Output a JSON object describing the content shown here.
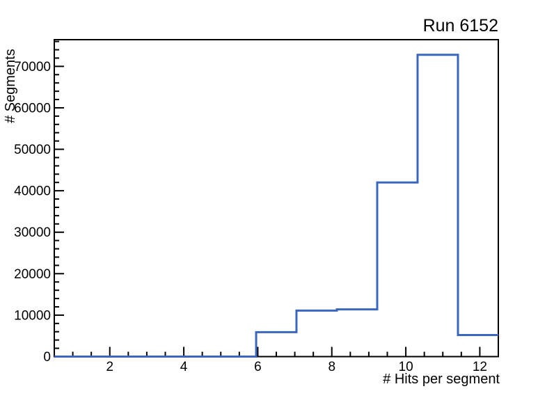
{
  "title": "Run 6152",
  "chart_data": {
    "type": "histogram-step",
    "title": "Run 6152",
    "xlabel": "# Hits per segment",
    "ylabel": "# Segments",
    "xlim": [
      0.5,
      12.5
    ],
    "ylim": [
      0,
      76440
    ],
    "bin_edges": [
      0.5,
      1.591,
      2.682,
      3.773,
      4.864,
      5.955,
      7.045,
      8.136,
      9.227,
      10.318,
      11.409,
      12.5
    ],
    "values": [
      0,
      0,
      0,
      0,
      0,
      5900,
      11100,
      11400,
      42000,
      72800,
      5200
    ],
    "x_major_ticks": [
      2,
      4,
      6,
      8,
      10,
      12
    ],
    "x_minor_step": 0.5,
    "y_major_ticks": [
      0,
      10000,
      20000,
      30000,
      40000,
      50000,
      60000,
      70000
    ],
    "y_minor_step": 2000,
    "grid": false,
    "legend_position": "none",
    "line_color": "#3b66be",
    "axis_color": "#000000",
    "background_color": "#ffffff",
    "tick_label_font_px": 19
  }
}
